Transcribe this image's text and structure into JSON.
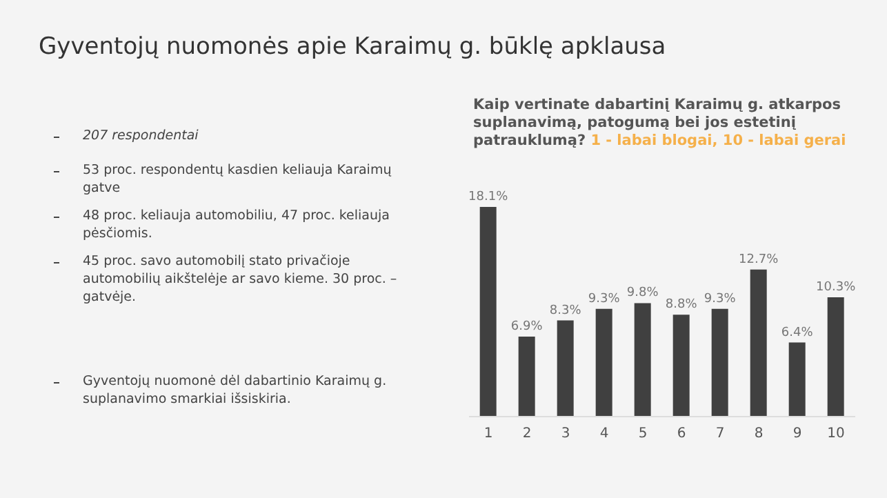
{
  "chart_data": {
    "type": "bar",
    "title": "Gyventojų nuomonės apie Karaimų g. būklę apklausa",
    "subtitle": "Kaip vertinate dabartinį Karaimų g. atkarpos suplanavimą, patogumą bei jos estetinį patrauklumą?",
    "annotations": [
      "1 - labai blogai, 10 - labai gerai",
      "207 respondentai",
      "53 proc. respondentų kasdien keliauja Karaimų gatve",
      "48 proc. keliauja automobiliu, 47 proc. keliauja pėsčiomis.",
      "45 proc. savo automobilį stato privačioje automobilių aikštelėje ar savo kieme. 30 proc. – gatvėje.",
      "Gyventojų nuomonė dėl dabartinio Karaimų g. suplanavimo smarkiai išsiskiria."
    ],
    "categories": [
      "1",
      "2",
      "3",
      "4",
      "5",
      "6",
      "7",
      "8",
      "9",
      "10"
    ],
    "values": [
      18.1,
      6.9,
      8.3,
      9.3,
      9.8,
      8.8,
      9.3,
      12.7,
      6.4,
      10.3
    ],
    "value_labels": [
      "18.1%",
      "6.9%",
      "8.3%",
      "9.3%",
      "9.8%",
      "8.8%",
      "9.3%",
      "12.7%",
      "6.4%",
      "10.3%"
    ],
    "color": "#404040",
    "grid": false,
    "legend": false
  }
}
